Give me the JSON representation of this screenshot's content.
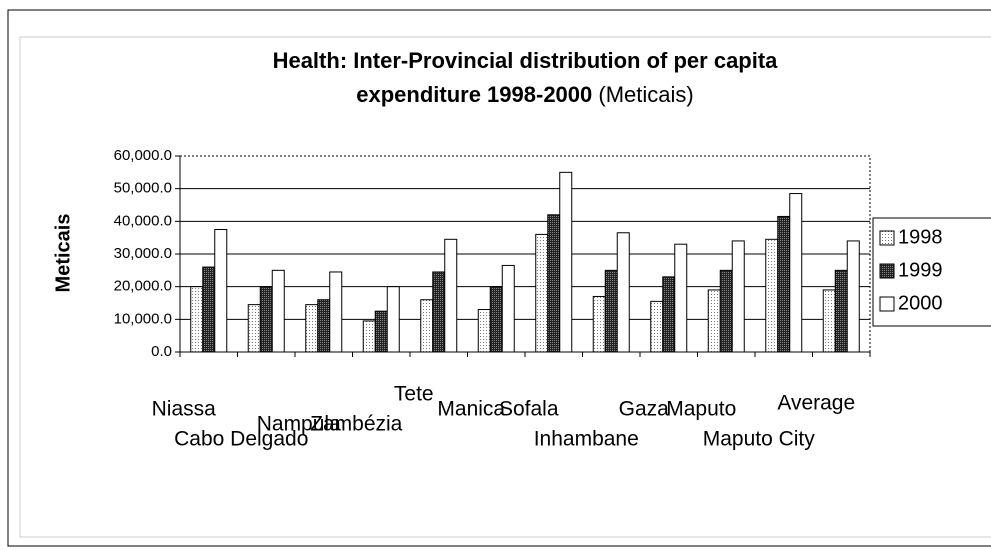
{
  "chart_data": {
    "type": "bar",
    "title": [
      "Health: Inter-Provincial distribution of per capita",
      "expenditure 1998-2000"
    ],
    "title_unit": "(Meticais)",
    "ylabel": "Meticais",
    "categories": [
      "Niassa",
      "Cabo Delgado",
      "Nampula",
      "Zambézia",
      "Tete",
      "Manica",
      "Sofala",
      "Inhambane",
      "Gaza",
      "Maputo",
      "Maputo City",
      "Average"
    ],
    "series": [
      {
        "name": "1998",
        "color": "#c8c8c8",
        "values": [
          20000,
          14500,
          14500,
          9500,
          16000,
          13000,
          36000,
          17000,
          15500,
          19000,
          34500,
          19000
        ]
      },
      {
        "name": "1999",
        "color": "#333333",
        "values": [
          26000,
          20000,
          16000,
          12500,
          24500,
          20000,
          42000,
          25000,
          23000,
          25000,
          41500,
          25000
        ]
      },
      {
        "name": "2000",
        "color": "#ffffff",
        "values": [
          37500,
          25000,
          24500,
          20000,
          34500,
          26500,
          55000,
          36500,
          33000,
          34000,
          48500,
          34000
        ]
      }
    ],
    "ylim": [
      0,
      60000
    ],
    "yticks": [
      {
        "value": 0,
        "label": "0.0"
      },
      {
        "value": 10000,
        "label": "10,000.0"
      },
      {
        "value": 20000,
        "label": "20,000.0"
      },
      {
        "value": 30000,
        "label": "30,000.0"
      },
      {
        "value": 40000,
        "label": "40,000.0"
      },
      {
        "value": 50000,
        "label": "50,000.0"
      },
      {
        "value": 60000,
        "label": "60,000.0"
      }
    ],
    "grid": true,
    "legend": "right"
  }
}
